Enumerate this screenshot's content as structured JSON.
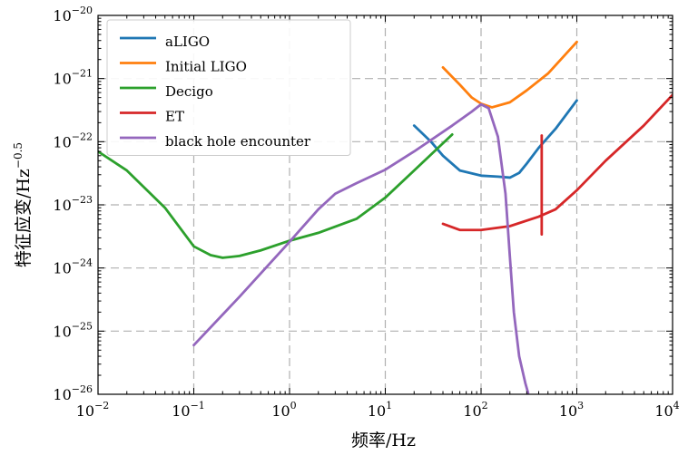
{
  "chart_data": {
    "type": "line",
    "x_scale": "log",
    "y_scale": "log",
    "xlim": [
      0.01,
      10000
    ],
    "ylim": [
      1e-26,
      1e-20
    ],
    "xlabel": "频率/Hz",
    "ylabel_base": "特征应变/Hz",
    "ylabel_exp": "−0.5",
    "grid": true,
    "legend_position": "top-left",
    "x_ticks": [
      {
        "value": 0.01,
        "base": "10",
        "exp": "−2"
      },
      {
        "value": 0.1,
        "base": "10",
        "exp": "−1"
      },
      {
        "value": 1,
        "base": "10",
        "exp": "0"
      },
      {
        "value": 10,
        "base": "10",
        "exp": "1"
      },
      {
        "value": 100,
        "base": "10",
        "exp": "2"
      },
      {
        "value": 1000,
        "base": "10",
        "exp": "3"
      },
      {
        "value": 10000,
        "base": "10",
        "exp": "4"
      }
    ],
    "y_ticks": [
      {
        "value": 1e-26,
        "base": "10",
        "exp": "−26"
      },
      {
        "value": 1e-25,
        "base": "10",
        "exp": "−25"
      },
      {
        "value": 1e-24,
        "base": "10",
        "exp": "−24"
      },
      {
        "value": 1e-23,
        "base": "10",
        "exp": "−23"
      },
      {
        "value": 1e-22,
        "base": "10",
        "exp": "−22"
      },
      {
        "value": 1e-21,
        "base": "10",
        "exp": "−21"
      },
      {
        "value": 1e-20,
        "base": "10",
        "exp": "−20"
      }
    ],
    "series": [
      {
        "name": "aLIGO",
        "color": "#1f77b4",
        "points": [
          [
            20,
            1.8e-22
          ],
          [
            30,
            1e-22
          ],
          [
            40,
            6e-23
          ],
          [
            60,
            3.5e-23
          ],
          [
            100,
            2.9e-23
          ],
          [
            150,
            2.8e-23
          ],
          [
            200,
            2.7e-23
          ],
          [
            250,
            3.2e-23
          ],
          [
            300,
            4.5e-23
          ],
          [
            400,
            8e-23
          ],
          [
            600,
            1.6e-22
          ],
          [
            1000,
            4.5e-22
          ]
        ]
      },
      {
        "name": "Initial LIGO",
        "color": "#ff7f0e",
        "points": [
          [
            40,
            1.5e-21
          ],
          [
            60,
            8e-22
          ],
          [
            80,
            5e-22
          ],
          [
            100,
            4e-22
          ],
          [
            130,
            3.5e-22
          ],
          [
            200,
            4.2e-22
          ],
          [
            300,
            6.5e-22
          ],
          [
            500,
            1.2e-21
          ],
          [
            1000,
            3.8e-21
          ]
        ]
      },
      {
        "name": "Decigo",
        "color": "#2ca02c",
        "points": [
          [
            0.01,
            7e-23
          ],
          [
            0.02,
            3.5e-23
          ],
          [
            0.05,
            9e-24
          ],
          [
            0.1,
            2.2e-24
          ],
          [
            0.15,
            1.6e-24
          ],
          [
            0.2,
            1.45e-24
          ],
          [
            0.3,
            1.55e-24
          ],
          [
            0.5,
            1.9e-24
          ],
          [
            1,
            2.7e-24
          ],
          [
            2,
            3.6e-24
          ],
          [
            5,
            6e-24
          ],
          [
            10,
            1.3e-23
          ],
          [
            20,
            3.5e-23
          ],
          [
            50,
            1.3e-22
          ]
        ]
      },
      {
        "name": "ET",
        "color": "#d62728",
        "points": [
          [
            40,
            5e-24
          ],
          [
            60,
            4e-24
          ],
          [
            100,
            4e-24
          ],
          [
            200,
            4.6e-24
          ],
          [
            400,
            6.5e-24
          ],
          [
            600,
            8.5e-24
          ],
          [
            1000,
            1.7e-23
          ],
          [
            2000,
            5e-23
          ],
          [
            5000,
            1.8e-22
          ],
          [
            10000,
            5.5e-22
          ]
        ]
      },
      {
        "name": "ET-spike",
        "legend": false,
        "color": "#d62728",
        "points": [
          [
            430,
            1.25e-22
          ],
          [
            430,
            3.4e-24
          ]
        ]
      },
      {
        "name": "black hole encounter",
        "color": "#9467bd",
        "points": [
          [
            0.1,
            6e-26
          ],
          [
            0.3,
            3.5e-25
          ],
          [
            1,
            2.6e-24
          ],
          [
            2,
            8.5e-24
          ],
          [
            3,
            1.5e-23
          ],
          [
            5,
            2.2e-23
          ],
          [
            10,
            3.6e-23
          ],
          [
            20,
            7e-23
          ],
          [
            50,
            1.8e-22
          ],
          [
            80,
            3e-22
          ],
          [
            100,
            3.9e-22
          ],
          [
            120,
            3.4e-22
          ],
          [
            150,
            1.2e-22
          ],
          [
            180,
            1.5e-23
          ],
          [
            200,
            1.5e-24
          ],
          [
            220,
            2e-25
          ],
          [
            250,
            4e-26
          ],
          [
            290,
            1.5e-26
          ],
          [
            310,
            1.05e-26
          ]
        ]
      }
    ]
  }
}
